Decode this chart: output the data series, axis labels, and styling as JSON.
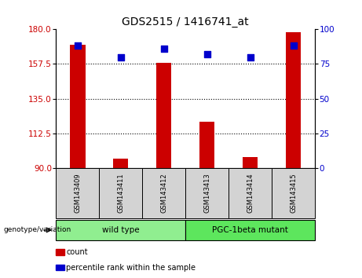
{
  "title": "GDS2515 / 1416741_at",
  "samples": [
    "GSM143409",
    "GSM143411",
    "GSM143412",
    "GSM143413",
    "GSM143414",
    "GSM143415"
  ],
  "count_values": [
    170,
    96,
    158,
    120,
    97,
    178
  ],
  "percentile_values": [
    88,
    80,
    86,
    82,
    80,
    88
  ],
  "ylim_left": [
    90,
    180
  ],
  "ylim_right": [
    0,
    100
  ],
  "yticks_left": [
    90,
    112.5,
    135,
    157.5,
    180
  ],
  "yticks_right": [
    0,
    25,
    50,
    75,
    100
  ],
  "groups": [
    {
      "label": "wild type",
      "span": [
        0,
        3
      ],
      "color": "#90ee90"
    },
    {
      "label": "PGC-1beta mutant",
      "span": [
        3,
        6
      ],
      "color": "#5de65d"
    }
  ],
  "group_label_prefix": "genotype/variation",
  "bar_color": "#cc0000",
  "dot_color": "#0000cc",
  "bar_width": 0.35,
  "dot_size": 40,
  "tick_label_color_left": "#cc0000",
  "tick_label_color_right": "#0000cc",
  "legend_items": [
    "count",
    "percentile rank within the sample"
  ],
  "legend_colors": [
    "#cc0000",
    "#0000cc"
  ]
}
